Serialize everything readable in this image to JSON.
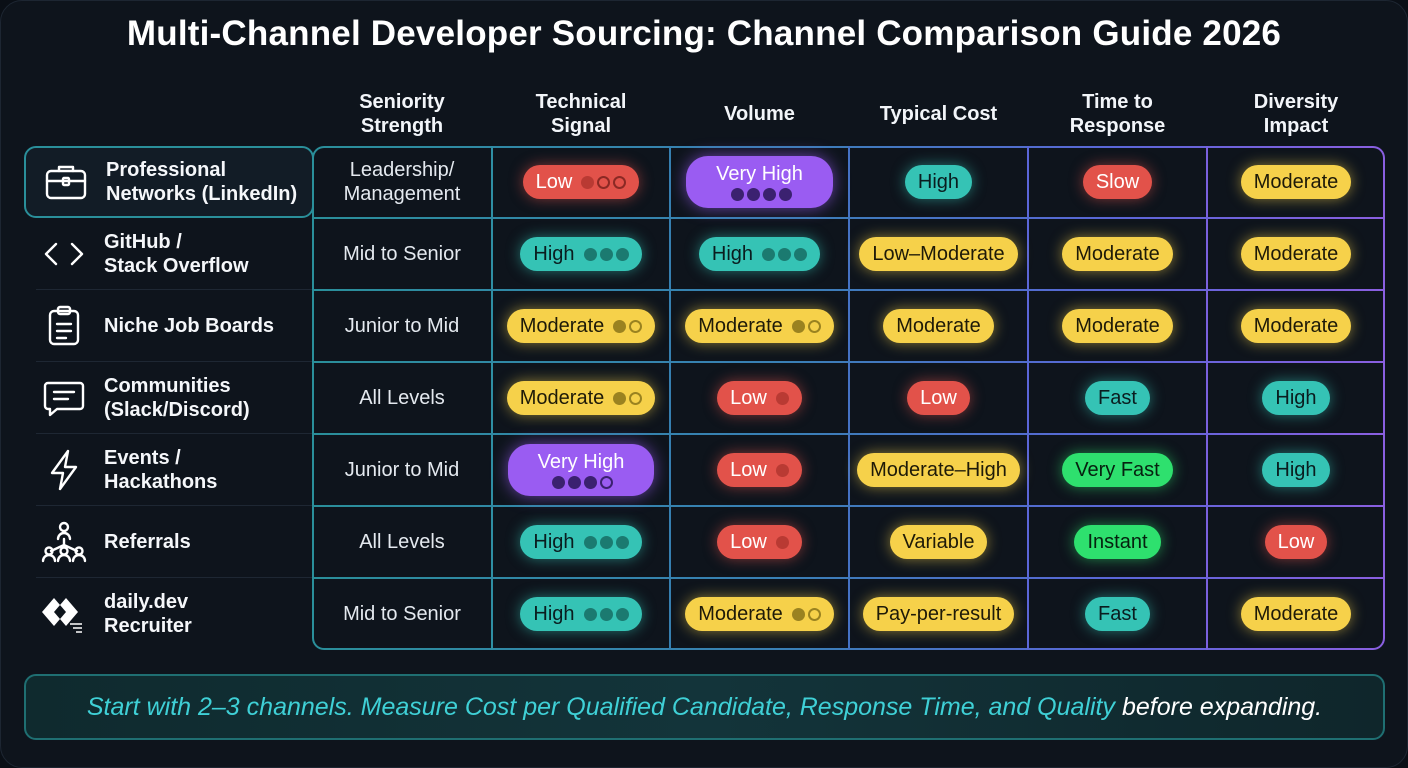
{
  "title": "Multi-Channel Developer Sourcing: Channel Comparison Guide 2026",
  "columns": [
    "Seniority\nStrength",
    "Technical\nSignal",
    "Volume",
    "Typical Cost",
    "Time to\nResponse",
    "Diversity\nImpact"
  ],
  "rows": [
    {
      "channel": "Professional\nNetworks (LinkedIn)",
      "icon": "briefcase-icon",
      "selected": true,
      "seniority": "Leadership/\nManagement",
      "technical": {
        "label": "Low",
        "color": "red",
        "dots": 1,
        "max": 3
      },
      "volume": {
        "label": "Very High",
        "color": "purple",
        "dots": 4,
        "max": 4,
        "tall": true
      },
      "cost": {
        "label": "High",
        "color": "teal"
      },
      "response": {
        "label": "Slow",
        "color": "red"
      },
      "diversity": {
        "label": "Moderate",
        "color": "yellow"
      }
    },
    {
      "channel": "GitHub /\nStack Overflow",
      "icon": "code-icon",
      "seniority": "Mid to Senior",
      "technical": {
        "label": "High",
        "color": "teal",
        "dots": 3,
        "max": 3
      },
      "volume": {
        "label": "High",
        "color": "teal",
        "dots": 3,
        "max": 3
      },
      "cost": {
        "label": "Low–Moderate",
        "color": "yellow"
      },
      "response": {
        "label": "Moderate",
        "color": "yellow"
      },
      "diversity": {
        "label": "Moderate",
        "color": "yellow"
      }
    },
    {
      "channel": "Niche Job Boards",
      "icon": "clipboard-icon",
      "seniority": "Junior to Mid",
      "technical": {
        "label": "Moderate",
        "color": "yellow",
        "dots": 1,
        "max": 2
      },
      "volume": {
        "label": "Moderate",
        "color": "yellow",
        "dots": 1,
        "max": 2
      },
      "cost": {
        "label": "Moderate",
        "color": "yellow"
      },
      "response": {
        "label": "Moderate",
        "color": "yellow"
      },
      "diversity": {
        "label": "Moderate",
        "color": "yellow"
      }
    },
    {
      "channel": "Communities\n(Slack/Discord)",
      "icon": "chat-icon",
      "seniority": "All Levels",
      "technical": {
        "label": "Moderate",
        "color": "yellow",
        "dots": 1,
        "max": 2
      },
      "volume": {
        "label": "Low",
        "color": "red",
        "dots": 1,
        "max": 1
      },
      "cost": {
        "label": "Low",
        "color": "red"
      },
      "response": {
        "label": "Fast",
        "color": "teal"
      },
      "diversity": {
        "label": "High",
        "color": "teal"
      }
    },
    {
      "channel": "Events /\nHackathons",
      "icon": "lightning-icon",
      "seniority": "Junior to Mid",
      "technical": {
        "label": "Very High",
        "color": "purple",
        "dots": 3,
        "max": 4,
        "tall": true
      },
      "volume": {
        "label": "Low",
        "color": "red",
        "dots": 1,
        "max": 1
      },
      "cost": {
        "label": "Moderate–High",
        "color": "yellow"
      },
      "response": {
        "label": "Very Fast",
        "color": "green"
      },
      "diversity": {
        "label": "High",
        "color": "teal"
      }
    },
    {
      "channel": "Referrals",
      "icon": "referral-network-icon",
      "seniority": "All Levels",
      "technical": {
        "label": "High",
        "color": "teal",
        "dots": 3,
        "max": 3
      },
      "volume": {
        "label": "Low",
        "color": "red",
        "dots": 1,
        "max": 1
      },
      "cost": {
        "label": "Variable",
        "color": "yellow"
      },
      "response": {
        "label": "Instant",
        "color": "green"
      },
      "diversity": {
        "label": "Low",
        "color": "red"
      }
    },
    {
      "channel": "daily.dev\nRecruiter",
      "icon": "daily-dev-logo-icon",
      "seniority": "Mid to Senior",
      "technical": {
        "label": "High",
        "color": "teal",
        "dots": 3,
        "max": 3
      },
      "volume": {
        "label": "Moderate",
        "color": "yellow",
        "dots": 1,
        "max": 2
      },
      "cost": {
        "label": "Pay-per-result",
        "color": "yellow"
      },
      "response": {
        "label": "Fast",
        "color": "teal"
      },
      "diversity": {
        "label": "Moderate",
        "color": "yellow"
      }
    }
  ],
  "footer": {
    "highlight": "Start with 2–3 channels. Measure Cost per Qualified Candidate, Response Time, and Quality",
    "rest": "before expanding."
  },
  "colors": {
    "red": "#e2524a",
    "teal": "#35c3b5",
    "yellow": "#f6d14a",
    "purple": "#9a5cf2",
    "green": "#2ee06e",
    "background": "#0e141c",
    "accent": "#3fd0d6"
  }
}
